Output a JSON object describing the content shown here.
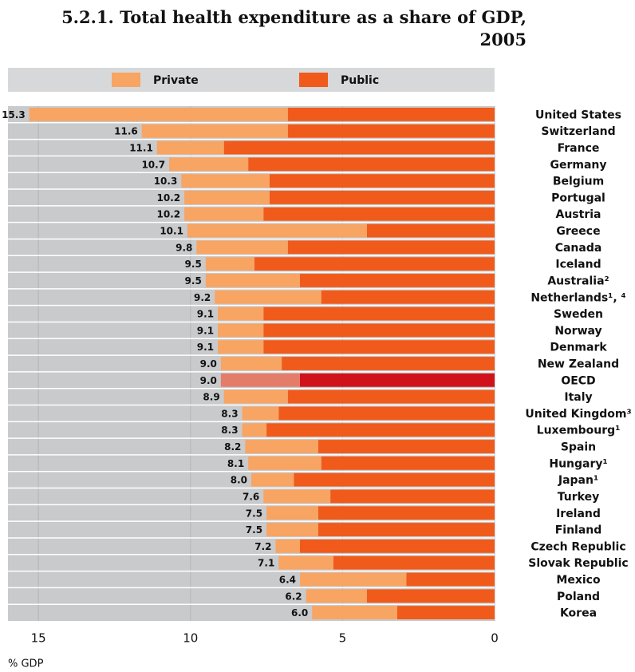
{
  "chart_data": {
    "type": "bar",
    "orientation": "horizontal",
    "stacked": true,
    "title": "5.2.1. Total health expenditure as a share of GDP, 2005",
    "x_label": "% GDP",
    "categories": [
      "United States",
      "Switzerland",
      "France",
      "Germany",
      "Belgium",
      "Portugal",
      "Austria",
      "Greece",
      "Canada",
      "Iceland",
      "Australia²",
      "Netherlands¹, ⁴",
      "Sweden",
      "Norway",
      "Denmark",
      "New Zealand",
      "OECD",
      "Italy",
      "United Kingdom³",
      "Luxembourg¹",
      "Spain",
      "Hungary¹",
      "Japan¹",
      "Turkey",
      "Ireland",
      "Finland",
      "Czech Republic",
      "Slovak Republic",
      "Mexico",
      "Poland",
      "Korea"
    ],
    "total_labels": [
      "15.3",
      "11.6",
      "11.1",
      "10.7",
      "10.3",
      "10.2",
      "10.2",
      "10.1",
      "9.8",
      "9.5",
      "9.5",
      "9.2",
      "9.1",
      "9.1",
      "9.1",
      "9.0",
      "9.0",
      "8.9",
      "8.3",
      "8.3",
      "8.2",
      "8.1",
      "8.0",
      "7.6",
      "7.5",
      "7.5",
      "7.2",
      "7.1",
      "6.4",
      "6.2",
      "6.0"
    ],
    "series": [
      {
        "name": "Public",
        "color": "#f05a1a",
        "colors": [
          "#f05a1a",
          "#f05a1a",
          "#f05a1a",
          "#f05a1a",
          "#f05a1a",
          "#f05a1a",
          "#f05a1a",
          "#f05a1a",
          "#f05a1a",
          "#f05a1a",
          "#f05a1a",
          "#f05a1a",
          "#f05a1a",
          "#f05a1a",
          "#f05a1a",
          "#f05a1a",
          "#d0121b",
          "#f05a1a",
          "#f05a1a",
          "#f05a1a",
          "#f05a1a",
          "#f05a1a",
          "#f05a1a",
          "#f05a1a",
          "#f05a1a",
          "#f05a1a",
          "#f05a1a",
          "#f05a1a",
          "#f05a1a",
          "#f05a1a",
          "#f05a1a"
        ],
        "values": [
          6.8,
          6.8,
          8.9,
          8.1,
          7.4,
          7.4,
          7.6,
          4.2,
          6.8,
          7.9,
          6.4,
          5.7,
          7.6,
          7.6,
          7.6,
          7.0,
          6.4,
          6.8,
          7.1,
          7.5,
          5.8,
          5.7,
          6.6,
          5.4,
          5.8,
          5.8,
          6.4,
          5.3,
          2.9,
          4.2,
          3.2
        ]
      },
      {
        "name": "Private",
        "color": "#f8a462",
        "colors": [
          "#f8a462",
          "#f8a462",
          "#f8a462",
          "#f8a462",
          "#f8a462",
          "#f8a462",
          "#f8a462",
          "#f8a462",
          "#f8a462",
          "#f8a462",
          "#f8a462",
          "#f8a462",
          "#f8a462",
          "#f8a462",
          "#f8a462",
          "#f8a462",
          "#e47c6a",
          "#f8a462",
          "#f8a462",
          "#f8a462",
          "#f8a462",
          "#f8a462",
          "#f8a462",
          "#f8a462",
          "#f8a462",
          "#f8a462",
          "#f8a462",
          "#f8a462",
          "#f8a462",
          "#f8a462",
          "#f8a462"
        ],
        "values": [
          8.5,
          4.8,
          2.2,
          2.6,
          2.9,
          2.8,
          2.6,
          5.9,
          3.0,
          1.6,
          3.1,
          3.5,
          1.5,
          1.5,
          1.5,
          2.0,
          2.6,
          2.1,
          1.2,
          0.8,
          2.4,
          2.4,
          1.4,
          2.2,
          1.7,
          1.7,
          0.8,
          1.8,
          3.5,
          2.0,
          2.8
        ]
      }
    ],
    "legend_order": [
      "Private",
      "Public"
    ],
    "xlim": [
      0,
      16
    ],
    "xticks": [
      15,
      10,
      5,
      0
    ],
    "x_reversed": true
  }
}
